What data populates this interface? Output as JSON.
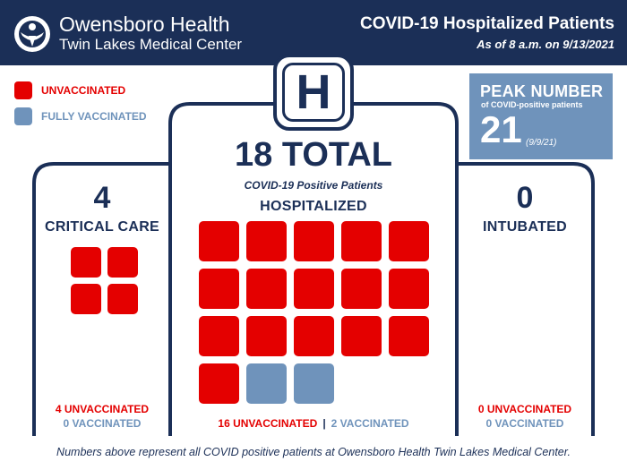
{
  "header": {
    "brand_line1": "Owensboro Health",
    "brand_line2": "Twin Lakes Medical Center",
    "title": "COVID-19 Hospitalized Patients",
    "as_of": "As of 8 a.m. on 9/13/2021",
    "logo_icon": "owensboro-health-logo-icon"
  },
  "legend": {
    "unvaccinated": "UNVACCINATED",
    "vaccinated": "FULLY VACCINATED"
  },
  "peak": {
    "title": "PEAK NUMBER",
    "subtitle": "of COVID-positive patients",
    "value": "21",
    "date": "(9/9/21)"
  },
  "hospital": {
    "badge": "H",
    "total": "18 TOTAL",
    "subtitle": "COVID-19 Positive Patients",
    "label": "HOSPITALIZED",
    "unvaccinated_count": 16,
    "vaccinated_count": 2,
    "unvaccinated_text": "16 UNVACCINATED",
    "separator": "|",
    "vaccinated_text": "2 VACCINATED"
  },
  "critical_care": {
    "number": "4",
    "label": "CRITICAL CARE",
    "unvaccinated_count": 4,
    "vaccinated_count": 0,
    "unvaccinated_text": "4 UNVACCINATED",
    "vaccinated_text": "0 VACCINATED"
  },
  "intubated": {
    "number": "0",
    "label": "INTUBATED",
    "unvaccinated_text": "0 UNVACCINATED",
    "vaccinated_text": "0 VACCINATED"
  },
  "footer": "Numbers above represent all COVID positive patients at Owensboro Health Twin Lakes Medical Center.",
  "colors": {
    "navy": "#1b2f57",
    "unvaccinated": "#e40000",
    "vaccinated": "#6f93bb"
  }
}
